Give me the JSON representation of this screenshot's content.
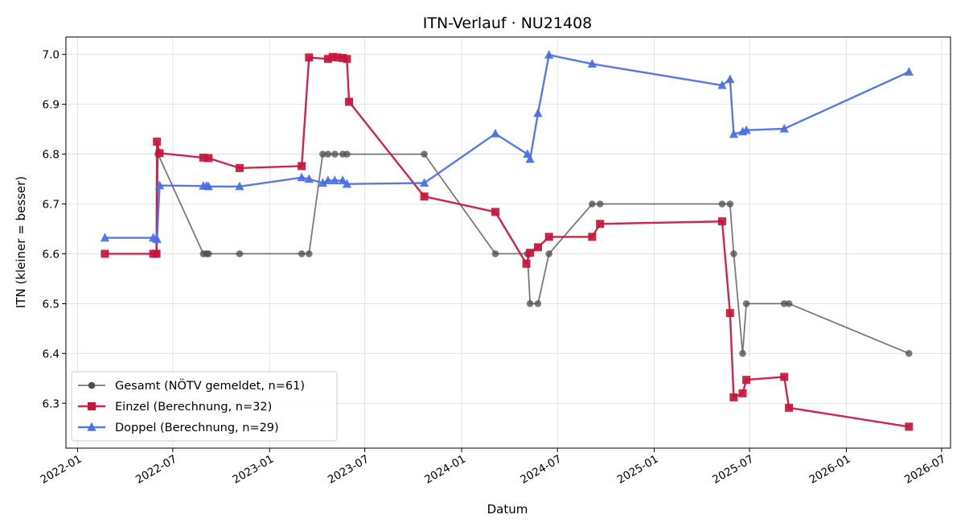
{
  "chart_data": {
    "type": "line",
    "title": "ITN-Verlauf · NU21408",
    "xlabel": "Datum",
    "ylabel": "ITN  (kleiner = besser)",
    "x_type": "date",
    "xlim": [
      "2021-12-10",
      "2026-07-18"
    ],
    "ylim": [
      6.21,
      7.035
    ],
    "x_ticks": [
      "2022-01-01",
      "2022-07-01",
      "2023-01-01",
      "2023-07-01",
      "2024-01-01",
      "2024-07-01",
      "2025-01-01",
      "2025-07-01",
      "2026-01-01",
      "2026-07-01"
    ],
    "x_tick_labels": [
      "2022-01",
      "2022-07",
      "2023-01",
      "2023-07",
      "2024-01",
      "2024-07",
      "2025-01",
      "2025-07",
      "2026-01",
      "2026-07"
    ],
    "y_ticks": [
      6.3,
      6.4,
      6.5,
      6.6,
      6.7,
      6.8,
      6.9,
      7.0
    ],
    "y_tick_labels": [
      "6.3",
      "6.4",
      "6.5",
      "6.6",
      "6.7",
      "6.8",
      "6.9",
      "7.0"
    ],
    "grid": true,
    "legend_position": "lower-left",
    "series": [
      {
        "name": "Gesamt (NÖTV gemeldet, n=61)",
        "color": "#4d4d4d",
        "marker": "circle",
        "points": [
          [
            "2022-06-01",
            6.6
          ],
          [
            "2022-06-03",
            6.8
          ],
          [
            "2022-08-28",
            6.6
          ],
          [
            "2022-09-03",
            6.6
          ],
          [
            "2022-09-07",
            6.6
          ],
          [
            "2022-11-05",
            6.6
          ],
          [
            "2023-03-03",
            6.6
          ],
          [
            "2023-03-17",
            6.6
          ],
          [
            "2023-04-12",
            6.8
          ],
          [
            "2023-04-22",
            6.8
          ],
          [
            "2023-05-05",
            6.8
          ],
          [
            "2023-05-20",
            6.8
          ],
          [
            "2023-05-28",
            6.8
          ],
          [
            "2023-10-22",
            6.8
          ],
          [
            "2024-03-05",
            6.6
          ],
          [
            "2024-05-05",
            6.6
          ],
          [
            "2024-05-10",
            6.5
          ],
          [
            "2024-05-25",
            6.5
          ],
          [
            "2024-06-15",
            6.6
          ],
          [
            "2024-09-05",
            6.7
          ],
          [
            "2024-09-20",
            6.7
          ],
          [
            "2025-05-10",
            6.7
          ],
          [
            "2025-05-25",
            6.7
          ],
          [
            "2025-06-01",
            6.6
          ],
          [
            "2025-06-18",
            6.4
          ],
          [
            "2025-06-25",
            6.5
          ],
          [
            "2025-09-05",
            6.5
          ],
          [
            "2025-09-14",
            6.5
          ],
          [
            "2026-04-30",
            6.4
          ]
        ]
      },
      {
        "name": "Einzel (Berechnung, n=32)",
        "color": "#c8143c",
        "marker": "square",
        "points": [
          [
            "2022-02-22",
            6.6
          ],
          [
            "2022-05-25",
            6.6
          ],
          [
            "2022-05-31",
            6.6
          ],
          [
            "2022-06-01",
            6.825
          ],
          [
            "2022-06-06",
            6.802
          ],
          [
            "2022-08-28",
            6.793
          ],
          [
            "2022-09-07",
            6.792
          ],
          [
            "2022-11-05",
            6.772
          ],
          [
            "2023-03-03",
            6.776
          ],
          [
            "2023-03-17",
            6.994
          ],
          [
            "2023-04-22",
            6.991
          ],
          [
            "2023-05-01",
            6.995
          ],
          [
            "2023-05-10",
            6.994
          ],
          [
            "2023-05-20",
            6.993
          ],
          [
            "2023-05-28",
            6.991
          ],
          [
            "2023-06-01",
            6.905
          ],
          [
            "2023-10-22",
            6.715
          ],
          [
            "2024-03-05",
            6.684
          ],
          [
            "2024-05-03",
            6.58
          ],
          [
            "2024-05-10",
            6.602
          ],
          [
            "2024-05-25",
            6.613
          ],
          [
            "2024-06-15",
            6.634
          ],
          [
            "2024-09-05",
            6.634
          ],
          [
            "2024-09-20",
            6.66
          ],
          [
            "2025-05-10",
            6.665
          ],
          [
            "2025-05-25",
            6.481
          ],
          [
            "2025-06-01",
            6.312
          ],
          [
            "2025-06-18",
            6.32
          ],
          [
            "2025-06-25",
            6.347
          ],
          [
            "2025-09-05",
            6.353
          ],
          [
            "2025-09-14",
            6.291
          ],
          [
            "2026-04-30",
            6.253
          ]
        ]
      },
      {
        "name": "Doppel (Berechnung, n=29)",
        "color": "#4a6ee6",
        "marker": "triangle",
        "points": [
          [
            "2022-02-22",
            6.632
          ],
          [
            "2022-05-25",
            6.632
          ],
          [
            "2022-05-31",
            6.631
          ],
          [
            "2022-06-01",
            6.629
          ],
          [
            "2022-06-06",
            6.737
          ],
          [
            "2022-08-28",
            6.736
          ],
          [
            "2022-09-03",
            6.736
          ],
          [
            "2022-09-07",
            6.735
          ],
          [
            "2022-11-05",
            6.735
          ],
          [
            "2023-03-03",
            6.753
          ],
          [
            "2023-03-17",
            6.75
          ],
          [
            "2023-04-12",
            6.742
          ],
          [
            "2023-04-22",
            6.747
          ],
          [
            "2023-05-05",
            6.747
          ],
          [
            "2023-05-20",
            6.747
          ],
          [
            "2023-05-28",
            6.74
          ],
          [
            "2023-10-22",
            6.742
          ],
          [
            "2024-03-05",
            6.841
          ],
          [
            "2024-05-05",
            6.8
          ],
          [
            "2024-05-10",
            6.79
          ],
          [
            "2024-05-25",
            6.882
          ],
          [
            "2024-06-15",
            6.999
          ],
          [
            "2024-09-05",
            6.981
          ],
          [
            "2025-05-10",
            6.938
          ],
          [
            "2025-05-25",
            6.95
          ],
          [
            "2025-06-01",
            6.84
          ],
          [
            "2025-06-18",
            6.845
          ],
          [
            "2025-06-25",
            6.848
          ],
          [
            "2025-09-05",
            6.851
          ],
          [
            "2026-04-30",
            6.965
          ]
        ]
      }
    ]
  }
}
